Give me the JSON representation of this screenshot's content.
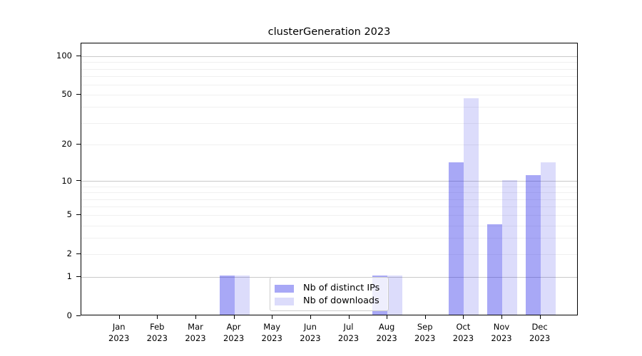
{
  "title": "clusterGeneration 2023",
  "legend": {
    "items": [
      {
        "label": "Nb of distinct IPs"
      },
      {
        "label": "Nb of downloads"
      }
    ]
  },
  "y_axis": {
    "tick_values": [
      100,
      50,
      20,
      10,
      5,
      2,
      1,
      0
    ],
    "tick_labels": [
      "100",
      "50",
      "20",
      "10",
      "5",
      "2",
      "1",
      "0"
    ]
  },
  "x_axis": {
    "months": [
      "Jan",
      "Feb",
      "Mar",
      "Apr",
      "May",
      "Jun",
      "Jul",
      "Aug",
      "Sep",
      "Oct",
      "Nov",
      "Dec"
    ],
    "year": "2023"
  },
  "grid": {
    "major_values": [
      1,
      10,
      100
    ],
    "minor_values": [
      2,
      3,
      4,
      5,
      6,
      7,
      8,
      9,
      20,
      30,
      40,
      50,
      60,
      70,
      80,
      90
    ]
  },
  "colors": {
    "bar_distinct_ips": "rgba(32,32,232,0.39)",
    "bar_downloads": "rgba(32,32,232,0.155)",
    "grid_major": "#c9c9c9",
    "grid_minor": "#f0f0f0",
    "spine": "#000000",
    "text": "#000000",
    "legend_border": "#cccccc",
    "legend_bg": "rgba(255,255,255,0.8)"
  },
  "chart_data": {
    "type": "bar",
    "title": "clusterGeneration 2023",
    "categories": [
      "Jan 2023",
      "Feb 2023",
      "Mar 2023",
      "Apr 2023",
      "May 2023",
      "Jun 2023",
      "Jul 2023",
      "Aug 2023",
      "Sep 2023",
      "Oct 2023",
      "Nov 2023",
      "Dec 2023"
    ],
    "series": [
      {
        "name": "Nb of distinct IPs",
        "color": "rgba(32,32,232,0.39)",
        "values": [
          0,
          0,
          0,
          1,
          0,
          0,
          0,
          1,
          0,
          14,
          4,
          11
        ]
      },
      {
        "name": "Nb of downloads",
        "color": "rgba(32,32,232,0.155)",
        "values": [
          0,
          0,
          0,
          1,
          0,
          0,
          0,
          1,
          0,
          46,
          10,
          14
        ]
      }
    ],
    "yscale": "log1p",
    "y_ticks": [
      0,
      1,
      2,
      5,
      10,
      20,
      50,
      100
    ],
    "ylim": [
      0,
      126
    ],
    "grid": "horizontal-only",
    "legend_position": "lower center inside"
  }
}
